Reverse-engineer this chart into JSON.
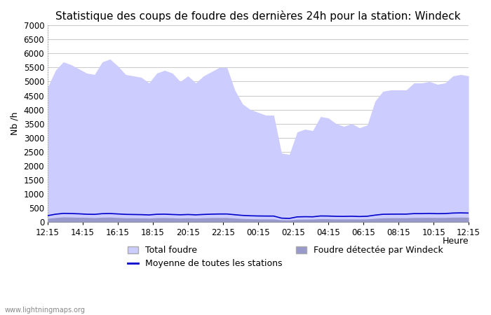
{
  "title": "Statistique des coups de foudre des dernières 24h pour la station: Windeck",
  "ylabel": "Nb /h",
  "xlabel": "Heure",
  "watermark": "www.lightningmaps.org",
  "x_ticks": [
    "12:15",
    "14:15",
    "16:15",
    "18:15",
    "20:15",
    "22:15",
    "00:15",
    "02:15",
    "04:15",
    "06:15",
    "08:15",
    "10:15",
    "12:15"
  ],
  "ylim": [
    0,
    7000
  ],
  "yticks": [
    0,
    500,
    1000,
    1500,
    2000,
    2500,
    3000,
    3500,
    4000,
    4500,
    5000,
    5500,
    6000,
    6500,
    7000
  ],
  "total_foudre_color": "#ccccff",
  "windeck_color": "#9999cc",
  "moyenne_color": "#0000cc",
  "background_color": "#ffffff",
  "grid_color": "#cccccc",
  "title_fontsize": 11,
  "label_fontsize": 9,
  "tick_fontsize": 8.5,
  "total_foudre": [
    4800,
    5400,
    5700,
    5600,
    5450,
    5300,
    5250,
    5700,
    5800,
    5550,
    5250,
    5200,
    5150,
    4950,
    5300,
    5400,
    5300,
    5000,
    5200,
    4950,
    5200,
    5350,
    5500,
    5500,
    4700,
    4200,
    4000,
    3900,
    3800,
    3800,
    2450,
    2400,
    3200,
    3300,
    3250,
    3750,
    3700,
    3500,
    3400,
    3500,
    3350,
    3450,
    4300,
    4650,
    4700,
    4700,
    4700,
    4950,
    4950,
    5000,
    4900,
    4950,
    5200,
    5250,
    5200
  ],
  "windeck": [
    120,
    150,
    170,
    165,
    160,
    155,
    145,
    160,
    165,
    150,
    140,
    138,
    135,
    128,
    145,
    148,
    140,
    130,
    140,
    130,
    140,
    148,
    150,
    148,
    130,
    115,
    105,
    100,
    98,
    98,
    70,
    65,
    90,
    92,
    95,
    108,
    105,
    98,
    100,
    100,
    98,
    102,
    122,
    138,
    142,
    142,
    142,
    152,
    152,
    155,
    150,
    152,
    162,
    165,
    162
  ],
  "moyenne": [
    220,
    270,
    300,
    295,
    285,
    270,
    265,
    290,
    295,
    280,
    265,
    260,
    255,
    245,
    268,
    272,
    260,
    250,
    260,
    248,
    262,
    272,
    278,
    278,
    252,
    228,
    215,
    208,
    205,
    204,
    130,
    120,
    175,
    182,
    178,
    208,
    205,
    195,
    192,
    198,
    188,
    198,
    238,
    268,
    272,
    274,
    274,
    292,
    292,
    298,
    290,
    294,
    312,
    318,
    312
  ]
}
